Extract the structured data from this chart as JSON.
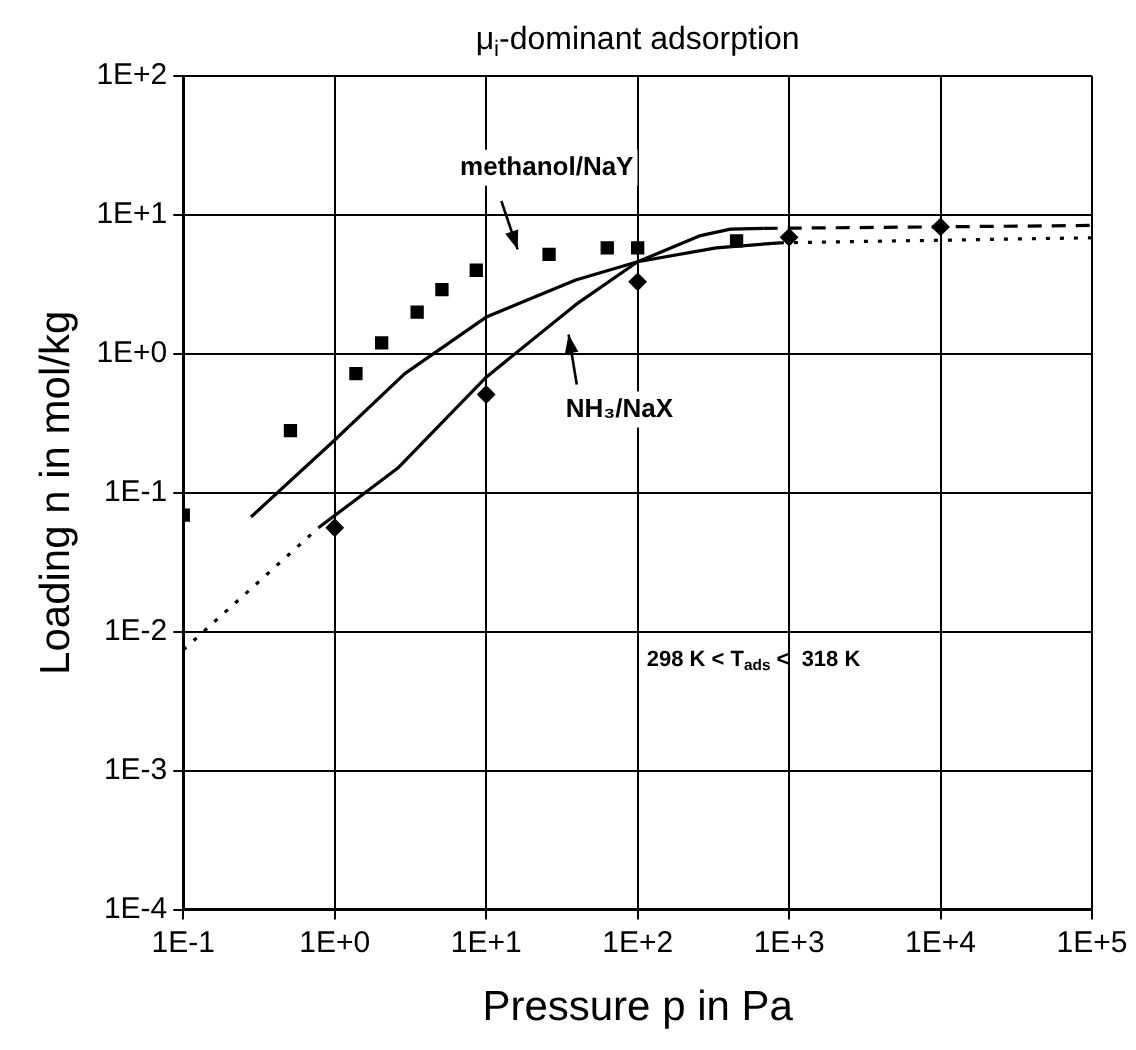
{
  "chart_data": {
    "type": "scatter",
    "title": "μ$_{i}$-dominant adsorption",
    "xlabel": "Pressure p in Pa",
    "ylabel": "Loading n in mol/kg",
    "log": "xy",
    "grid": true,
    "legend": false,
    "xlim": [
      0.1,
      100000
    ],
    "ylim": [
      0.0001,
      100
    ],
    "xticks": [
      {
        "value": 0.1,
        "label": "1E-1"
      },
      {
        "value": 1,
        "label": "1E+0"
      },
      {
        "value": 10,
        "label": "1E+1"
      },
      {
        "value": 100,
        "label": "1E+2"
      },
      {
        "value": 1000,
        "label": "1E+3"
      },
      {
        "value": 10000,
        "label": "1E+4"
      },
      {
        "value": 100000,
        "label": "1E+5"
      }
    ],
    "yticks": [
      {
        "value": 0.0001,
        "label": "1E-4"
      },
      {
        "value": 0.001,
        "label": "1E-3"
      },
      {
        "value": 0.01,
        "label": "1E-2"
      },
      {
        "value": 0.1,
        "label": "1E-1"
      },
      {
        "value": 1,
        "label": "1E+0"
      },
      {
        "value": 10,
        "label": "1E+1"
      },
      {
        "value": 100,
        "label": "1E+2"
      }
    ],
    "series": [
      {
        "color": "#000000",
        "marker": "square",
        "x": [
          0.1,
          0.51,
          1.38,
          2.04,
          3.5,
          5.1,
          8.6,
          26,
          63,
          100,
          450
        ],
        "values": [
          0.069,
          0.28,
          0.72,
          1.2,
          2.0,
          2.9,
          4.0,
          5.2,
          5.8,
          5.8,
          6.5
        ]
      },
      {
        "color": "#000000",
        "marker": "diamond",
        "x": [
          1,
          10,
          100,
          1000,
          10000
        ],
        "values": [
          0.056,
          0.51,
          3.3,
          6.9,
          8.2
        ]
      },
      {
        "type": "line",
        "color": "#000000",
        "line_style": "solid",
        "x": [
          0.28,
          0.96,
          2.9,
          10,
          39,
          100,
          330,
          870
        ],
        "values": [
          0.067,
          0.23,
          0.72,
          1.84,
          3.4,
          4.6,
          5.8,
          6.3
        ]
      },
      {
        "type": "line",
        "color": "#000000",
        "line_style": "dotted",
        "x": [
          870,
          100000
        ],
        "values": [
          6.3,
          6.85
        ]
      },
      {
        "type": "line",
        "color": "#000000",
        "line_style": "dotted",
        "x": [
          0.1,
          0.78
        ],
        "values": [
          0.0074,
          0.056
        ]
      },
      {
        "type": "line",
        "color": "#000000",
        "line_style": "solid",
        "x": [
          0.78,
          2.6,
          10,
          39,
          100,
          260,
          410,
          680
        ],
        "values": [
          0.056,
          0.15,
          0.68,
          2.26,
          4.6,
          7.1,
          7.9,
          8.0
        ]
      },
      {
        "type": "line",
        "color": "#000000",
        "line_style": "dashed",
        "x": [
          680,
          100000
        ],
        "values": [
          8.0,
          8.4
        ]
      }
    ],
    "annotations": [
      "methanol/NaY",
      "NH₃/NaX",
      "298 K < T$_{ads}$ <  318 K"
    ]
  }
}
